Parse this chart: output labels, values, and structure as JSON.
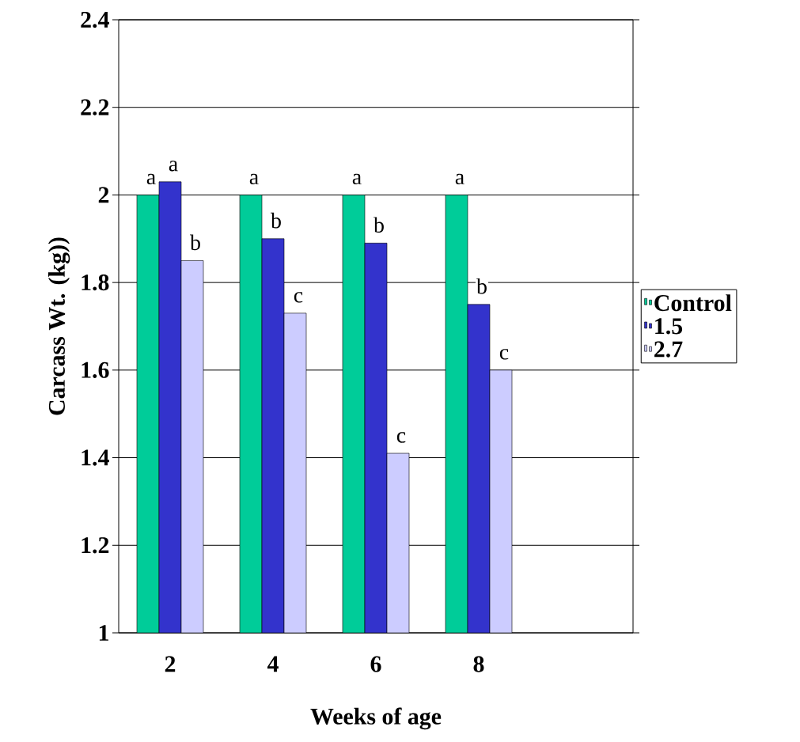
{
  "chart_data": {
    "type": "bar",
    "xlabel": "Weeks of age",
    "ylabel": "Carcass Wt. (kg))",
    "categories": [
      "2",
      "4",
      "6",
      "8",
      null
    ],
    "series": [
      {
        "name": "Control",
        "color": "#00cc99",
        "values": [
          2.0,
          2.0,
          2.0,
          2.0,
          null
        ],
        "value_labels": [
          "a",
          "a",
          "a",
          "a",
          null
        ]
      },
      {
        "name": "1.5",
        "color": "#3333cc",
        "values": [
          2.03,
          1.9,
          1.89,
          1.75,
          null
        ],
        "value_labels": [
          "a",
          "b",
          "b",
          "b",
          null
        ]
      },
      {
        "name": "2.7",
        "color": "#ccccff",
        "values": [
          1.85,
          1.73,
          1.41,
          1.6,
          null
        ],
        "value_labels": [
          "b",
          "c",
          "c",
          "c",
          null
        ]
      }
    ],
    "ylim": [
      1,
      2.4
    ],
    "yticks": [
      1,
      1.2,
      1.4,
      1.6,
      1.8,
      2,
      2.2,
      2.4
    ],
    "grid": "y",
    "legend": "right"
  }
}
